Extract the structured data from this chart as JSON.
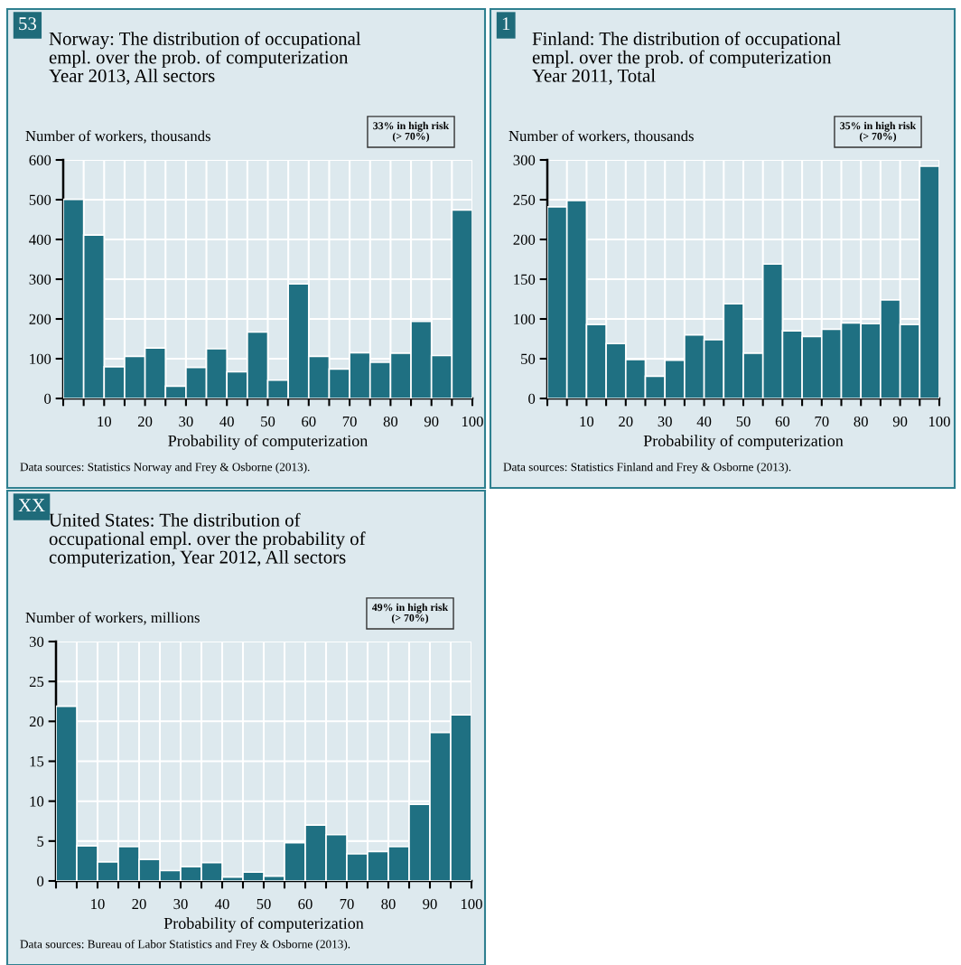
{
  "chart_data": [
    {
      "type": "histogram",
      "title": "Norway: The distribution of occupational\nempl. over the prob. of computerization\nYear 2013, All sectors",
      "ylabel": "Number of workers, thousands",
      "xlabel": "Probability of computerization",
      "annotations": [
        "53",
        "33% in high risk\n(> 70%)",
        "Data sources: Statistics Norway and Frey & Osborne (2013)."
      ],
      "bins": [
        0,
        5,
        10,
        15,
        20,
        25,
        30,
        35,
        40,
        45,
        50,
        55,
        60,
        65,
        70,
        75,
        80,
        85,
        90,
        95,
        100
      ],
      "values": [
        501,
        411,
        80,
        106,
        127,
        31,
        78,
        125,
        67,
        167,
        46,
        288,
        106,
        74,
        115,
        91,
        114,
        194,
        108,
        474
      ],
      "color": "#1f7082",
      "xlim": [
        0,
        100
      ],
      "ylim": [
        0,
        600
      ],
      "yticks": [
        0,
        100,
        200,
        300,
        400,
        500,
        600
      ],
      "xticks": [
        {
          "value": 0,
          "label": null
        },
        {
          "value": 5,
          "label": null
        },
        10,
        {
          "value": 15,
          "label": null
        },
        20,
        {
          "value": 25,
          "label": null
        },
        30,
        {
          "value": 35,
          "label": null
        },
        40,
        {
          "value": 45,
          "label": null
        },
        50,
        {
          "value": 55,
          "label": null
        },
        60,
        {
          "value": 65,
          "label": null
        },
        70,
        {
          "value": 75,
          "label": null
        },
        80,
        {
          "value": 85,
          "label": null
        },
        90,
        {
          "value": 95,
          "label": null
        },
        100
      ],
      "grid": true
    },
    {
      "type": "histogram",
      "title": "Finland: The distribution of occupational\nempl. over the prob. of computerization\nYear 2011, Total",
      "ylabel": "Number of workers, thousands",
      "xlabel": "Probability of computerization",
      "annotations": [
        "1",
        "35% in high risk\n(> 70%)",
        "Data sources: Statistics Finland and Frey & Osborne (2013)."
      ],
      "bins": [
        0,
        5,
        10,
        15,
        20,
        25,
        30,
        35,
        40,
        45,
        50,
        55,
        60,
        65,
        70,
        75,
        80,
        85,
        90,
        95,
        100
      ],
      "values": [
        241,
        249,
        93,
        69,
        49,
        28,
        48,
        80,
        74,
        119,
        57,
        169,
        85,
        78,
        87,
        95,
        94,
        124,
        93,
        292
      ],
      "color": "#1f7082",
      "xlim": [
        0,
        100
      ],
      "ylim": [
        0,
        300
      ],
      "yticks": [
        0,
        50,
        100,
        150,
        200,
        250,
        300
      ],
      "xticks": [
        {
          "value": 0,
          "label": null
        },
        {
          "value": 5,
          "label": null
        },
        10,
        {
          "value": 15,
          "label": null
        },
        20,
        {
          "value": 25,
          "label": null
        },
        30,
        {
          "value": 35,
          "label": null
        },
        40,
        {
          "value": 45,
          "label": null
        },
        50,
        {
          "value": 55,
          "label": null
        },
        60,
        {
          "value": 65,
          "label": null
        },
        70,
        {
          "value": 75,
          "label": null
        },
        80,
        {
          "value": 85,
          "label": null
        },
        90,
        {
          "value": 95,
          "label": null
        },
        100
      ],
      "grid": true
    },
    {
      "type": "histogram",
      "title": "United States: The distribution of\noccupational empl. over the probability of\ncomputerization, Year 2012, All sectors",
      "ylabel": "Number of workers, millions",
      "xlabel": "Probability of computerization",
      "annotations": [
        "XX",
        "49% in high risk\n(> 70%)",
        "Data sources: Bureau of Labor Statistics and Frey & Osborne (2013)."
      ],
      "bins": [
        0,
        5,
        10,
        15,
        20,
        25,
        30,
        35,
        40,
        45,
        50,
        55,
        60,
        65,
        70,
        75,
        80,
        85,
        90,
        95,
        100
      ],
      "values": [
        21.9,
        4.4,
        2.4,
        4.3,
        2.7,
        1.3,
        1.8,
        2.3,
        0.5,
        1.1,
        0.6,
        4.8,
        7.0,
        5.8,
        3.4,
        3.7,
        4.3,
        9.6,
        18.6,
        20.8
      ],
      "color": "#1f7082",
      "xlim": [
        0,
        100
      ],
      "ylim": [
        0,
        30
      ],
      "yticks": [
        0,
        5,
        10,
        15,
        20,
        25,
        30
      ],
      "xticks": [
        {
          "value": 0,
          "label": null
        },
        {
          "value": 5,
          "label": null
        },
        10,
        {
          "value": 15,
          "label": null
        },
        20,
        {
          "value": 25,
          "label": null
        },
        30,
        {
          "value": 35,
          "label": null
        },
        40,
        {
          "value": 45,
          "label": null
        },
        50,
        {
          "value": 55,
          "label": null
        },
        60,
        {
          "value": 65,
          "label": null
        },
        70,
        {
          "value": 75,
          "label": null
        },
        80,
        {
          "value": 85,
          "label": null
        },
        90,
        {
          "value": 95,
          "label": null
        },
        100
      ],
      "grid": true
    }
  ]
}
